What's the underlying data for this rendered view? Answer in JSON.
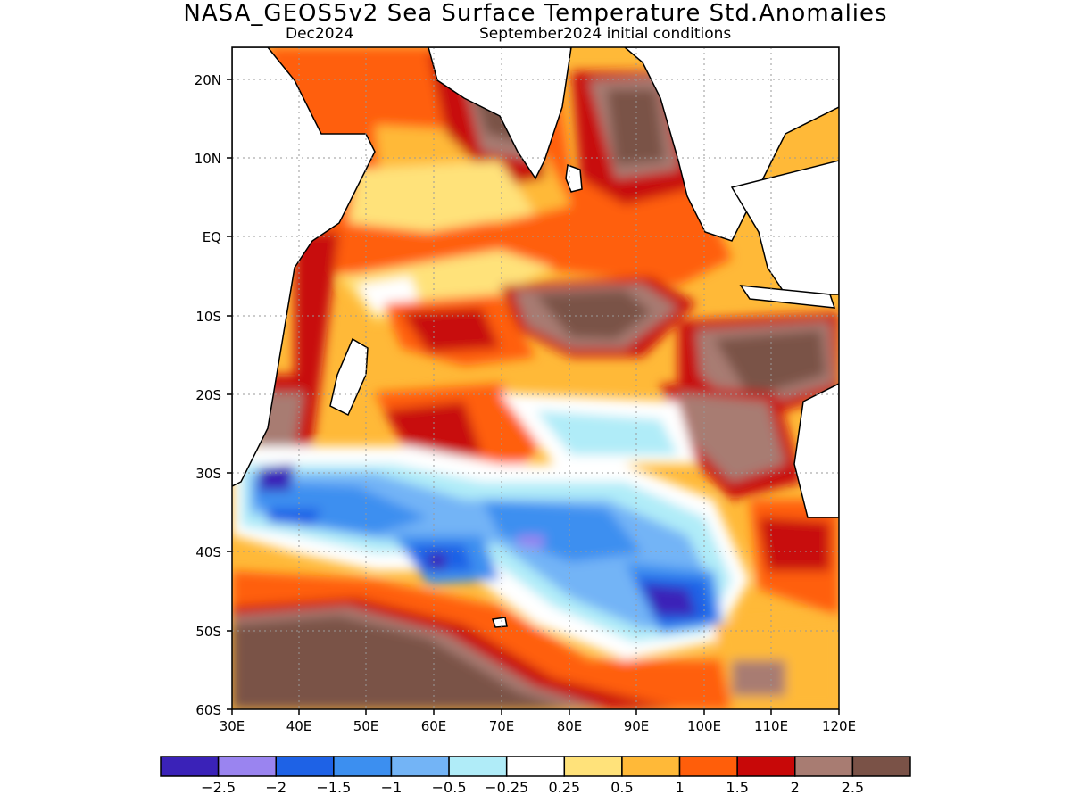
{
  "header": {
    "title": "NASA_GEOS5v2 Sea Surface Temperature Std.Anomalies",
    "forecast_month": "Dec2024",
    "initial_conditions": "September2024 initial conditions"
  },
  "map": {
    "region": "Indian Ocean",
    "lon_range": [
      30,
      120
    ],
    "lat_range": [
      -60,
      24
    ],
    "lon_ticks": [
      "30E",
      "40E",
      "50E",
      "60E",
      "70E",
      "80E",
      "90E",
      "100E",
      "110E",
      "120E"
    ],
    "lat_ticks": [
      "20N",
      "10N",
      "EQ",
      "10S",
      "20S",
      "30S",
      "40S",
      "50S",
      "60S"
    ]
  },
  "colorbar": {
    "colors": [
      "#3a22b8",
      "#9a84f0",
      "#1e62e6",
      "#3c8ff0",
      "#73b4f6",
      "#b0ecf8",
      "#ffffff",
      "#ffe27a",
      "#ffb938",
      "#ff5e0a",
      "#c80808",
      "#a87c72",
      "#7a5247"
    ],
    "labels": [
      "−2.5",
      "−2",
      "−1.5",
      "−1",
      "−0.5",
      "−0.25",
      "0.25",
      "0.5",
      "1",
      "1.5",
      "2",
      "2.5"
    ]
  }
}
